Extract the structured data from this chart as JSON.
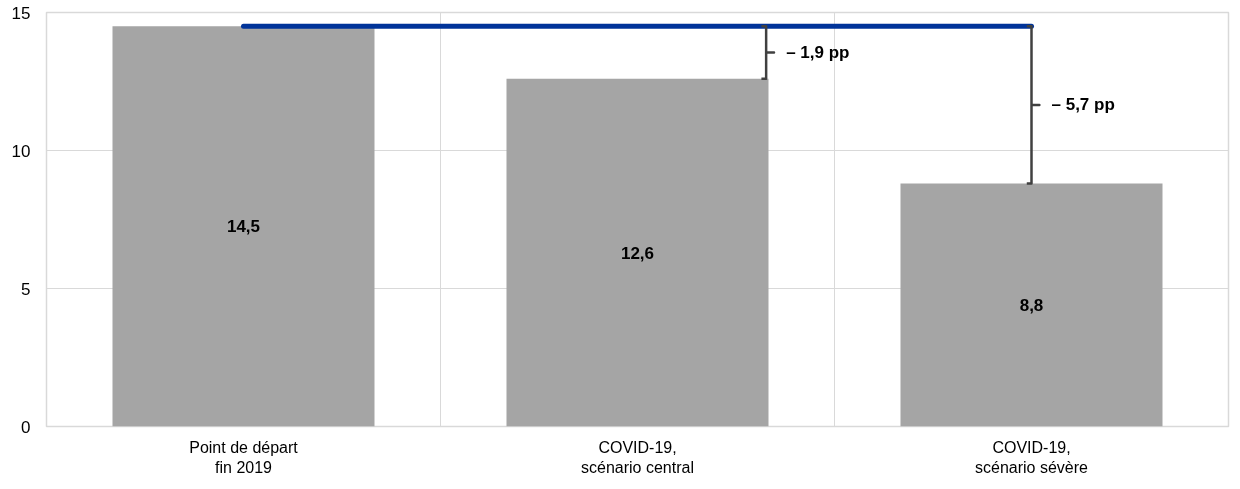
{
  "chart_data": {
    "type": "bar",
    "categories": [
      "Point de départ\nfin 2019",
      "COVID-19,\nscénario central",
      "COVID-19,\nscénario sévère"
    ],
    "series": [
      {
        "color": "#a5a5a5",
        "values": [
          14.5,
          12.6,
          8.8
        ],
        "value_labels": [
          "14,5",
          "12,6",
          "8,8"
        ],
        "errors": [
          null,
          [
            12.6,
            14.5
          ],
          [
            8.8,
            14.5
          ]
        ]
      },
      {
        "type": "line",
        "color": "#003399",
        "values": [
          14.5,
          14.5,
          14.5
        ]
      }
    ],
    "ylim": [
      0,
      15
    ],
    "yticks": [
      0,
      5,
      10,
      15
    ],
    "grid": true,
    "annotations": [
      "– 1,9 pp",
      "– 5,7 pp"
    ]
  }
}
